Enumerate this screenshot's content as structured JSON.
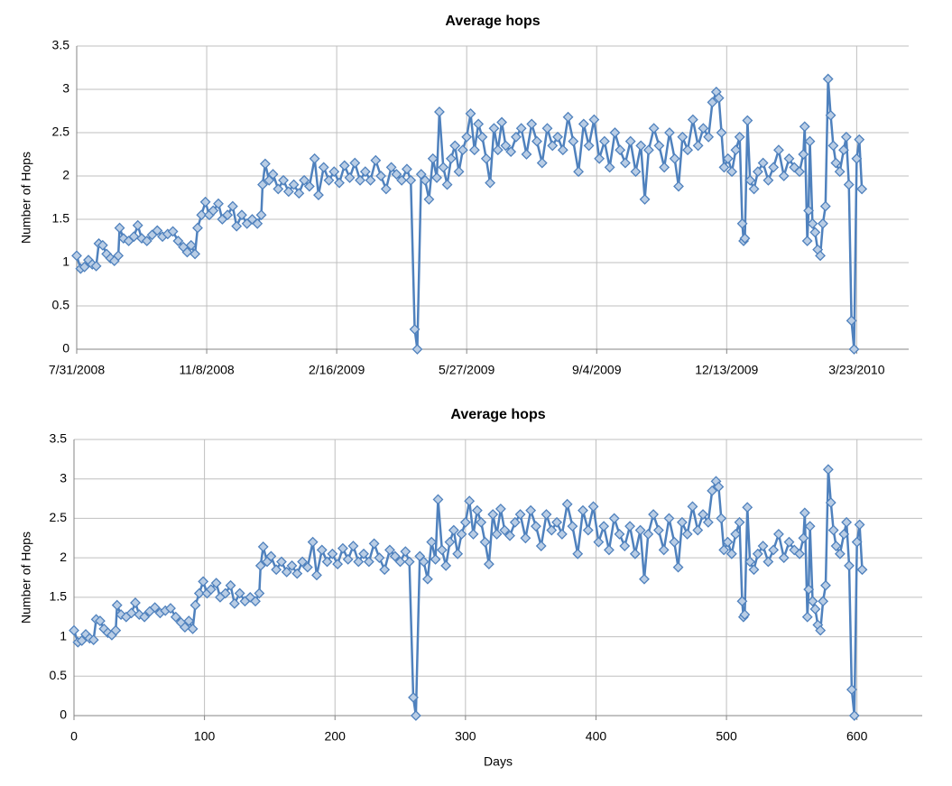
{
  "chart_data": [
    {
      "type": "line",
      "title": "Average hops",
      "ylabel": "Number of Hops",
      "xlim": [
        0,
        640
      ],
      "xticks": [
        {
          "value": 0,
          "label": "7/31/2008"
        },
        {
          "value": 100,
          "label": "11/8/2008"
        },
        {
          "value": 200,
          "label": "2/16/2009"
        },
        {
          "value": 300,
          "label": "5/27/2009"
        },
        {
          "value": 400,
          "label": "9/4/2009"
        },
        {
          "value": 500,
          "label": "12/13/2009"
        },
        {
          "value": 600,
          "label": "3/23/2010"
        }
      ],
      "ylim": [
        0,
        3.5
      ],
      "yticks": [
        0,
        0.5,
        1,
        1.5,
        2,
        2.5,
        3,
        3.5
      ],
      "grid": true,
      "x": [
        0,
        3,
        6,
        9,
        12,
        15,
        17,
        20,
        23,
        26,
        29,
        32,
        33,
        36,
        40,
        44,
        47,
        50,
        54,
        58,
        62,
        66,
        70,
        74,
        78,
        82,
        85,
        88,
        91,
        93,
        96,
        99,
        102,
        105,
        109,
        112,
        116,
        120,
        123,
        127,
        131,
        135,
        139,
        142,
        143,
        145,
        148,
        151,
        155,
        159,
        163,
        167,
        171,
        175,
        179,
        183,
        186,
        190,
        194,
        198,
        202,
        206,
        210,
        214,
        218,
        222,
        226,
        230,
        234,
        238,
        242,
        246,
        250,
        254,
        257,
        260,
        262,
        265,
        268,
        271,
        274,
        277,
        279,
        282,
        285,
        288,
        291,
        294,
        297,
        300,
        303,
        306,
        309,
        312,
        315,
        318,
        321,
        324,
        327,
        330,
        334,
        338,
        342,
        346,
        350,
        354,
        358,
        362,
        366,
        370,
        374,
        378,
        382,
        386,
        390,
        394,
        398,
        402,
        406,
        410,
        414,
        418,
        422,
        426,
        430,
        434,
        437,
        440,
        444,
        448,
        452,
        456,
        460,
        463,
        466,
        470,
        474,
        478,
        482,
        486,
        489,
        492,
        494,
        496,
        498,
        501,
        504,
        507,
        510,
        512,
        513,
        514,
        516,
        518,
        521,
        524,
        528,
        532,
        536,
        540,
        544,
        548,
        552,
        556,
        559,
        560,
        562,
        563,
        564,
        566,
        568,
        570,
        572,
        574,
        576,
        578,
        580,
        582,
        584,
        587,
        590,
        592,
        594,
        596,
        598,
        600,
        602,
        604
      ],
      "series": [
        {
          "name": "Average hops",
          "color": "#4f81bd",
          "values": [
            1.08,
            0.93,
            0.95,
            1.03,
            0.98,
            0.96,
            1.22,
            1.2,
            1.1,
            1.05,
            1.02,
            1.08,
            1.4,
            1.28,
            1.25,
            1.3,
            1.43,
            1.28,
            1.25,
            1.32,
            1.37,
            1.3,
            1.33,
            1.36,
            1.25,
            1.18,
            1.12,
            1.2,
            1.1,
            1.4,
            1.55,
            1.7,
            1.55,
            1.6,
            1.68,
            1.5,
            1.55,
            1.65,
            1.42,
            1.55,
            1.45,
            1.5,
            1.45,
            1.55,
            1.9,
            2.14,
            1.95,
            2.02,
            1.85,
            1.95,
            1.82,
            1.9,
            1.8,
            1.95,
            1.88,
            2.2,
            1.78,
            2.1,
            1.95,
            2.05,
            1.92,
            2.12,
            1.98,
            2.15,
            1.95,
            2.05,
            1.95,
            2.18,
            2.0,
            1.85,
            2.1,
            2.02,
            1.95,
            2.08,
            1.95,
            0.23,
            0.0,
            2.02,
            1.95,
            1.73,
            2.2,
            1.98,
            2.74,
            2.1,
            1.9,
            2.2,
            2.35,
            2.05,
            2.3,
            2.45,
            2.72,
            2.3,
            2.6,
            2.45,
            2.2,
            1.92,
            2.55,
            2.3,
            2.62,
            2.35,
            2.28,
            2.45,
            2.55,
            2.25,
            2.6,
            2.4,
            2.15,
            2.55,
            2.35,
            2.45,
            2.3,
            2.68,
            2.4,
            2.05,
            2.6,
            2.35,
            2.65,
            2.2,
            2.4,
            2.1,
            2.5,
            2.3,
            2.15,
            2.4,
            2.05,
            2.35,
            1.73,
            2.3,
            2.55,
            2.35,
            2.1,
            2.5,
            2.2,
            1.88,
            2.45,
            2.3,
            2.65,
            2.35,
            2.55,
            2.45,
            2.85,
            2.97,
            2.9,
            2.5,
            2.1,
            2.2,
            2.05,
            2.3,
            2.45,
            1.45,
            1.25,
            1.28,
            2.64,
            1.95,
            1.85,
            2.05,
            2.15,
            1.95,
            2.1,
            2.3,
            2.0,
            2.2,
            2.1,
            2.05,
            2.25,
            2.57,
            1.25,
            1.6,
            2.4,
            1.45,
            1.35,
            1.15,
            1.08,
            1.45,
            1.65,
            3.12,
            2.7,
            2.35,
            2.15,
            2.05,
            2.3,
            2.45,
            1.9,
            0.33,
            0.0,
            2.2,
            2.42,
            1.85
          ]
        }
      ]
    },
    {
      "type": "line",
      "title": "Average hops",
      "ylabel": "Number of Hops",
      "xlabel": "Days",
      "xlim": [
        0,
        650
      ],
      "xticks": [
        0,
        100,
        200,
        300,
        400,
        500,
        600
      ],
      "ylim": [
        0,
        3.5
      ],
      "yticks": [
        0,
        0.5,
        1,
        1.5,
        2,
        2.5,
        3,
        3.5
      ],
      "grid": true,
      "x": [
        0,
        3,
        6,
        9,
        12,
        15,
        17,
        20,
        23,
        26,
        29,
        32,
        33,
        36,
        40,
        44,
        47,
        50,
        54,
        58,
        62,
        66,
        70,
        74,
        78,
        82,
        85,
        88,
        91,
        93,
        96,
        99,
        102,
        105,
        109,
        112,
        116,
        120,
        123,
        127,
        131,
        135,
        139,
        142,
        143,
        145,
        148,
        151,
        155,
        159,
        163,
        167,
        171,
        175,
        179,
        183,
        186,
        190,
        194,
        198,
        202,
        206,
        210,
        214,
        218,
        222,
        226,
        230,
        234,
        238,
        242,
        246,
        250,
        254,
        257,
        260,
        262,
        265,
        268,
        271,
        274,
        277,
        279,
        282,
        285,
        288,
        291,
        294,
        297,
        300,
        303,
        306,
        309,
        312,
        315,
        318,
        321,
        324,
        327,
        330,
        334,
        338,
        342,
        346,
        350,
        354,
        358,
        362,
        366,
        370,
        374,
        378,
        382,
        386,
        390,
        394,
        398,
        402,
        406,
        410,
        414,
        418,
        422,
        426,
        430,
        434,
        437,
        440,
        444,
        448,
        452,
        456,
        460,
        463,
        466,
        470,
        474,
        478,
        482,
        486,
        489,
        492,
        494,
        496,
        498,
        501,
        504,
        507,
        510,
        512,
        513,
        514,
        516,
        518,
        521,
        524,
        528,
        532,
        536,
        540,
        544,
        548,
        552,
        556,
        559,
        560,
        562,
        563,
        564,
        566,
        568,
        570,
        572,
        574,
        576,
        578,
        580,
        582,
        584,
        587,
        590,
        592,
        594,
        596,
        598,
        600,
        602,
        604
      ],
      "series": [
        {
          "name": "Average hops",
          "color": "#4f81bd",
          "values": [
            1.08,
            0.93,
            0.95,
            1.03,
            0.98,
            0.96,
            1.22,
            1.2,
            1.1,
            1.05,
            1.02,
            1.08,
            1.4,
            1.28,
            1.25,
            1.3,
            1.43,
            1.28,
            1.25,
            1.32,
            1.37,
            1.3,
            1.33,
            1.36,
            1.25,
            1.18,
            1.12,
            1.2,
            1.1,
            1.4,
            1.55,
            1.7,
            1.55,
            1.6,
            1.68,
            1.5,
            1.55,
            1.65,
            1.42,
            1.55,
            1.45,
            1.5,
            1.45,
            1.55,
            1.9,
            2.14,
            1.95,
            2.02,
            1.85,
            1.95,
            1.82,
            1.9,
            1.8,
            1.95,
            1.88,
            2.2,
            1.78,
            2.1,
            1.95,
            2.05,
            1.92,
            2.12,
            1.98,
            2.15,
            1.95,
            2.05,
            1.95,
            2.18,
            2.0,
            1.85,
            2.1,
            2.02,
            1.95,
            2.08,
            1.95,
            0.23,
            0.0,
            2.02,
            1.95,
            1.73,
            2.2,
            1.98,
            2.74,
            2.1,
            1.9,
            2.2,
            2.35,
            2.05,
            2.3,
            2.45,
            2.72,
            2.3,
            2.6,
            2.45,
            2.2,
            1.92,
            2.55,
            2.3,
            2.62,
            2.35,
            2.28,
            2.45,
            2.55,
            2.25,
            2.6,
            2.4,
            2.15,
            2.55,
            2.35,
            2.45,
            2.3,
            2.68,
            2.4,
            2.05,
            2.6,
            2.35,
            2.65,
            2.2,
            2.4,
            2.1,
            2.5,
            2.3,
            2.15,
            2.4,
            2.05,
            2.35,
            1.73,
            2.3,
            2.55,
            2.35,
            2.1,
            2.5,
            2.2,
            1.88,
            2.45,
            2.3,
            2.65,
            2.35,
            2.55,
            2.45,
            2.85,
            2.97,
            2.9,
            2.5,
            2.1,
            2.2,
            2.05,
            2.3,
            2.45,
            1.45,
            1.25,
            1.28,
            2.64,
            1.95,
            1.85,
            2.05,
            2.15,
            1.95,
            2.1,
            2.3,
            2.0,
            2.2,
            2.1,
            2.05,
            2.25,
            2.57,
            1.25,
            1.6,
            2.4,
            1.45,
            1.35,
            1.15,
            1.08,
            1.45,
            1.65,
            3.12,
            2.7,
            2.35,
            2.15,
            2.05,
            2.3,
            2.45,
            1.9,
            0.33,
            0.0,
            2.2,
            2.42,
            1.85
          ]
        }
      ]
    }
  ]
}
